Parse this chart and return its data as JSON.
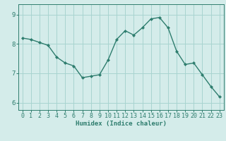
{
  "x": [
    0,
    1,
    2,
    3,
    4,
    5,
    6,
    7,
    8,
    9,
    10,
    11,
    12,
    13,
    14,
    15,
    16,
    17,
    18,
    19,
    20,
    21,
    22,
    23
  ],
  "y": [
    8.2,
    8.15,
    8.05,
    7.95,
    7.55,
    7.35,
    7.25,
    6.85,
    6.9,
    6.95,
    7.45,
    8.15,
    8.45,
    8.3,
    8.55,
    8.85,
    8.9,
    8.55,
    7.75,
    7.3,
    7.35,
    6.95,
    6.55,
    6.2
  ],
  "line_color": "#2e7d6e",
  "marker": "D",
  "marker_size": 2.0,
  "bg_color": "#d4ecea",
  "grid_color": "#a8d4d0",
  "axis_color": "#2e7d6e",
  "xlabel": "Humidex (Indice chaleur)",
  "xlabel_fontsize": 6.5,
  "tick_fontsize": 6.0,
  "ytick_fontsize": 6.5,
  "yticks": [
    6,
    7,
    8,
    9
  ],
  "xticks": [
    0,
    1,
    2,
    3,
    4,
    5,
    6,
    7,
    8,
    9,
    10,
    11,
    12,
    13,
    14,
    15,
    16,
    17,
    18,
    19,
    20,
    21,
    22,
    23
  ],
  "ylim": [
    5.75,
    9.35
  ],
  "xlim": [
    -0.5,
    23.5
  ]
}
